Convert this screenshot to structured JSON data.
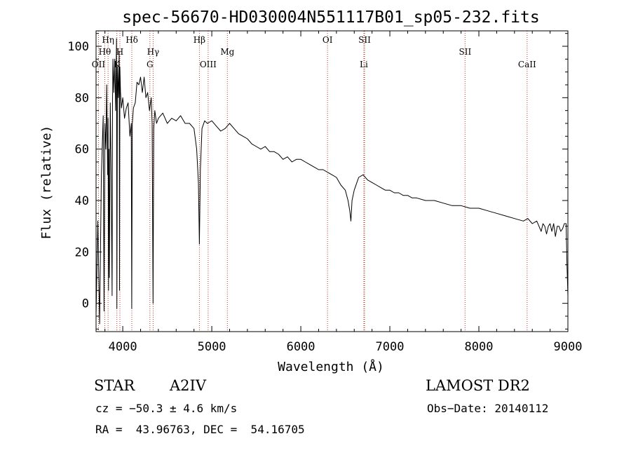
{
  "chart_data": {
    "type": "line",
    "title": "spec-56670-HD030004N551117B01_sp05-232.fits",
    "xlabel": "Wavelength (Å)",
    "ylabel": "Flux (relative)",
    "xlim": [
      3700,
      9000
    ],
    "ylim": [
      -11,
      106
    ],
    "x_ticks": [
      4000,
      5000,
      6000,
      7000,
      8000,
      9000
    ],
    "y_ticks": [
      0,
      20,
      40,
      60,
      80,
      100
    ],
    "grid": false,
    "series": [
      {
        "color": "#000000",
        "x": [
          3700,
          3720,
          3740,
          3760,
          3780,
          3790,
          3800,
          3810,
          3820,
          3830,
          3835,
          3840,
          3845,
          3850,
          3860,
          3870,
          3880,
          3885,
          3890,
          3900,
          3910,
          3920,
          3930,
          3934,
          3940,
          3950,
          3960,
          3964,
          3968,
          3975,
          3985,
          4000,
          4020,
          4040,
          4060,
          4080,
          4095,
          4101,
          4107,
          4120,
          4140,
          4160,
          4180,
          4200,
          4220,
          4240,
          4260,
          4280,
          4300,
          4320,
          4330,
          4340,
          4348,
          4360,
          4380,
          4400,
          4450,
          4500,
          4550,
          4600,
          4650,
          4700,
          4750,
          4800,
          4830,
          4850,
          4861,
          4872,
          4890,
          4920,
          4950,
          5000,
          5050,
          5100,
          5150,
          5200,
          5250,
          5300,
          5350,
          5400,
          5450,
          5500,
          5550,
          5600,
          5650,
          5700,
          5750,
          5800,
          5850,
          5900,
          5950,
          6000,
          6050,
          6100,
          6150,
          6200,
          6250,
          6300,
          6350,
          6400,
          6450,
          6500,
          6530,
          6550,
          6563,
          6575,
          6600,
          6650,
          6700,
          6750,
          6800,
          6850,
          6900,
          6950,
          7000,
          7050,
          7100,
          7150,
          7200,
          7250,
          7300,
          7400,
          7500,
          7600,
          7700,
          7800,
          7900,
          8000,
          8100,
          8200,
          8300,
          8400,
          8500,
          8550,
          8600,
          8650,
          8700,
          8720,
          8740,
          8760,
          8780,
          8800,
          8820,
          8840,
          8860,
          8880,
          8900,
          8920,
          8940,
          8960,
          8980,
          8990,
          9000
        ],
        "y": [
          -5,
          32,
          -8,
          50,
          73,
          -3,
          70,
          60,
          85,
          50,
          72,
          5,
          60,
          10,
          78,
          48,
          3,
          79,
          95,
          82,
          95,
          75,
          103,
          -2,
          92,
          80,
          98,
          5,
          92,
          82,
          76,
          80,
          72,
          76,
          78,
          65,
          70,
          -2,
          70,
          76,
          78,
          86,
          85,
          88,
          82,
          88,
          80,
          82,
          75,
          80,
          70,
          0,
          68,
          75,
          70,
          72,
          74,
          70,
          72,
          71,
          73,
          70,
          70,
          68,
          60,
          47,
          23,
          52,
          68,
          71,
          70,
          71,
          69,
          67,
          68,
          70,
          68,
          66,
          65,
          64,
          62,
          61,
          60,
          61,
          59,
          59,
          58,
          56,
          57,
          55,
          56,
          56,
          55,
          54,
          53,
          52,
          52,
          51,
          50,
          49,
          46,
          44,
          40,
          36,
          32,
          40,
          44,
          49,
          50,
          48,
          47,
          46,
          45,
          44,
          44,
          43,
          43,
          42,
          42,
          41,
          41,
          40,
          40,
          39,
          38,
          38,
          37,
          37,
          36,
          35,
          34,
          33,
          32,
          33,
          31,
          32,
          28,
          31,
          30,
          27,
          30,
          31,
          28,
          31,
          26,
          30,
          30,
          28,
          29,
          31,
          31,
          15,
          3
        ]
      }
    ],
    "line_markers": [
      {
        "label": "OII",
        "x": 3727,
        "row": 3
      },
      {
        "label": "Hθ",
        "x": 3798,
        "row": 2
      },
      {
        "label": "Hη",
        "x": 3835,
        "row": 1
      },
      {
        "label": "K",
        "x": 3934,
        "row": 3
      },
      {
        "label": "H",
        "x": 3968,
        "row": 2
      },
      {
        "label": "Hδ",
        "x": 4102,
        "row": 1
      },
      {
        "label": "G",
        "x": 4305,
        "row": 3
      },
      {
        "label": "Hγ",
        "x": 4341,
        "row": 2
      },
      {
        "label": "Hβ",
        "x": 4861,
        "row": 1
      },
      {
        "label": "OIII",
        "x": 4959,
        "row": 3
      },
      {
        "label": "Mg",
        "x": 5175,
        "row": 2
      },
      {
        "label": "OI",
        "x": 6300,
        "row": 1
      },
      {
        "label": "SII",
        "x": 6716,
        "row": 1
      },
      {
        "label": "Li",
        "x": 6708,
        "row": 3
      },
      {
        "label": "SII",
        "x": 7845,
        "row": 2
      },
      {
        "label": "CaII",
        "x": 8542,
        "row": 3
      }
    ],
    "marker_color": "#c0392b"
  },
  "info": {
    "object_type": "STAR",
    "subclass": "A2IV",
    "survey": "LAMOST DR2",
    "cz": "cz = −50.3 ± 4.6 km/s",
    "obs_date": "Obs−Date: 20140112",
    "coords": "RA =  43.96763, DEC =  54.16705"
  }
}
